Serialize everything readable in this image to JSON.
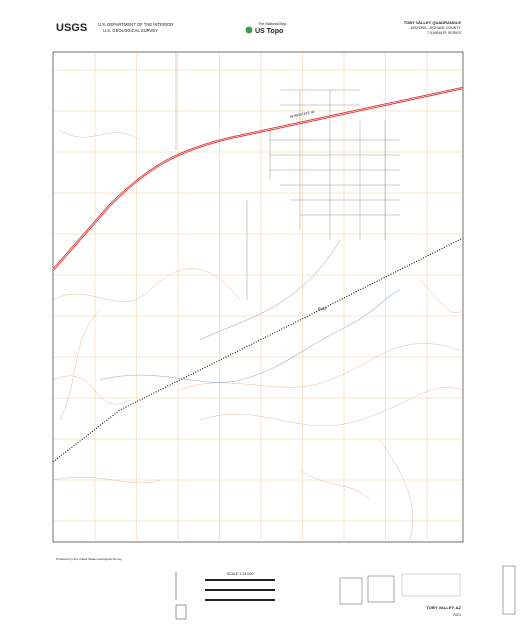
{
  "header": {
    "logo": "USGS",
    "agency": "U.S. DEPARTMENT OF THE INTERIOR",
    "bureau": "U.S. GEOLOGICAL SURVEY",
    "topo_tagline": "The National Map",
    "topo_brand": "US Topo",
    "quad_title": "TOBY VALLEY QUADRANGLE",
    "state_county": "ARIZONA - MOHAVE COUNTY",
    "series": "7.5-MINUTE SERIES"
  },
  "map": {
    "road_label": "INTERSTATE 40",
    "rail_label": "BNSF"
  },
  "footer": {
    "scale": "SCALE 1:24 000",
    "name": "TOBY VALLEY, AZ",
    "year": "2021"
  }
}
